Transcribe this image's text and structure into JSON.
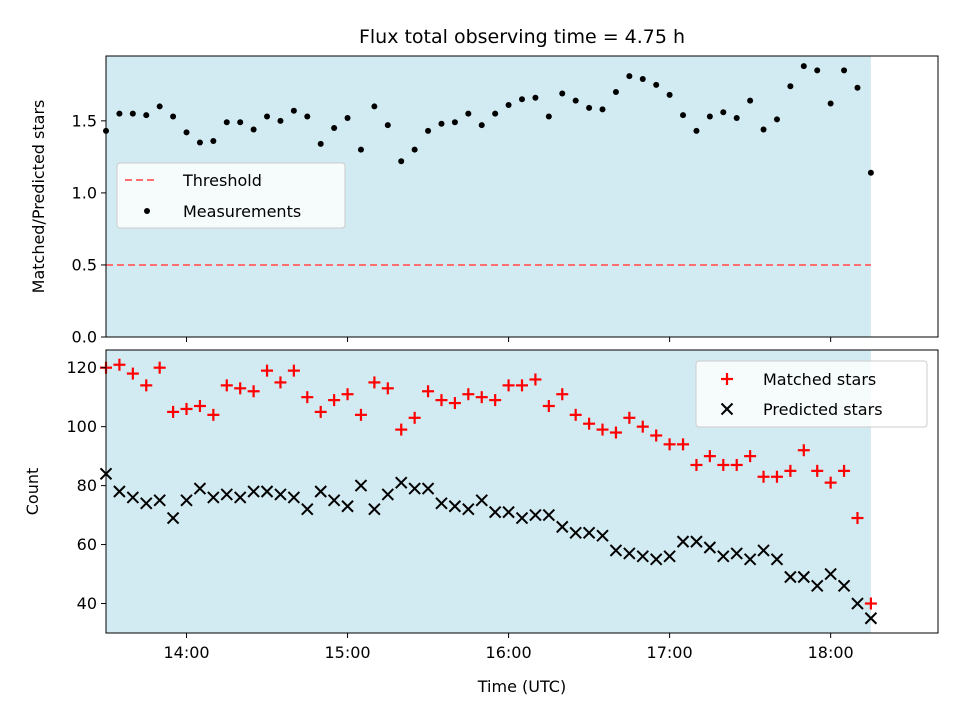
{
  "figure": {
    "title": "Flux total observing time = 4.75 h",
    "xlabel": "Time (UTC)",
    "x_ticks": [
      "14:00",
      "15:00",
      "16:00",
      "17:00",
      "18:00"
    ]
  },
  "colors": {
    "shade": "#add8e6",
    "threshold": "#ff6f6f",
    "measurements": "#000000",
    "matched": "#ff0000",
    "predicted": "#000000"
  },
  "chart_data": [
    {
      "type": "scatter",
      "ylabel": "Matched/Predicted stars",
      "xlim": [
        "13:30",
        "18:40"
      ],
      "ylim": [
        0,
        1.95
      ],
      "y_ticks": [
        "0.0",
        "0.5",
        "1.0",
        "1.5"
      ],
      "observing_window": [
        "13:30",
        "18:15"
      ],
      "legend_position": "center-left",
      "legend": [
        "Threshold",
        "Measurements"
      ],
      "threshold": {
        "name": "Threshold",
        "value": 0.5,
        "style": "dashed"
      },
      "series": [
        {
          "name": "Measurements",
          "marker": "dot",
          "x": [
            "13:30",
            "13:35",
            "13:40",
            "13:45",
            "13:50",
            "13:55",
            "14:00",
            "14:05",
            "14:10",
            "14:15",
            "14:20",
            "14:25",
            "14:30",
            "14:35",
            "14:40",
            "14:45",
            "14:50",
            "14:55",
            "15:00",
            "15:05",
            "15:10",
            "15:15",
            "15:20",
            "15:25",
            "15:30",
            "15:35",
            "15:40",
            "15:45",
            "15:50",
            "15:55",
            "16:00",
            "16:05",
            "16:10",
            "16:15",
            "16:20",
            "16:25",
            "16:30",
            "16:35",
            "16:40",
            "16:45",
            "16:50",
            "16:55",
            "17:00",
            "17:05",
            "17:10",
            "17:15",
            "17:20",
            "17:25",
            "17:30",
            "17:35",
            "17:40",
            "17:45",
            "17:50",
            "17:55",
            "18:00",
            "18:05",
            "18:10",
            "18:15"
          ],
          "values": [
            1.43,
            1.55,
            1.55,
            1.54,
            1.6,
            1.53,
            1.42,
            1.35,
            1.36,
            1.49,
            1.49,
            1.44,
            1.53,
            1.5,
            1.57,
            1.53,
            1.34,
            1.45,
            1.52,
            1.3,
            1.6,
            1.47,
            1.22,
            1.3,
            1.43,
            1.48,
            1.49,
            1.55,
            1.47,
            1.55,
            1.61,
            1.65,
            1.66,
            1.53,
            1.69,
            1.64,
            1.59,
            1.58,
            1.7,
            1.81,
            1.79,
            1.75,
            1.68,
            1.54,
            1.43,
            1.53,
            1.56,
            1.52,
            1.64,
            1.44,
            1.51,
            1.74,
            1.88,
            1.85,
            1.62,
            1.85,
            1.73,
            1.14
          ]
        }
      ]
    },
    {
      "type": "scatter",
      "ylabel": "Count",
      "xlim": [
        "13:30",
        "18:40"
      ],
      "ylim": [
        30,
        126
      ],
      "y_ticks": [
        "40",
        "60",
        "80",
        "100",
        "120"
      ],
      "observing_window": [
        "13:30",
        "18:15"
      ],
      "legend_position": "top-right",
      "x": [
        "13:30",
        "13:35",
        "13:40",
        "13:45",
        "13:50",
        "13:55",
        "14:00",
        "14:05",
        "14:10",
        "14:15",
        "14:20",
        "14:25",
        "14:30",
        "14:35",
        "14:40",
        "14:45",
        "14:50",
        "14:55",
        "15:00",
        "15:05",
        "15:10",
        "15:15",
        "15:20",
        "15:25",
        "15:30",
        "15:35",
        "15:40",
        "15:45",
        "15:50",
        "15:55",
        "16:00",
        "16:05",
        "16:10",
        "16:15",
        "16:20",
        "16:25",
        "16:30",
        "16:35",
        "16:40",
        "16:45",
        "16:50",
        "16:55",
        "17:00",
        "17:05",
        "17:10",
        "17:15",
        "17:20",
        "17:25",
        "17:30",
        "17:35",
        "17:40",
        "17:45",
        "17:50",
        "17:55",
        "18:00",
        "18:05",
        "18:10",
        "18:15"
      ],
      "series": [
        {
          "name": "Matched stars",
          "marker": "plus",
          "values": [
            120,
            121,
            118,
            114,
            120,
            105,
            106,
            107,
            104,
            114,
            113,
            112,
            119,
            115,
            119,
            110,
            105,
            109,
            111,
            104,
            115,
            113,
            99,
            103,
            112,
            109,
            108,
            111,
            110,
            109,
            114,
            114,
            116,
            107,
            111,
            104,
            101,
            99,
            98,
            103,
            100,
            97,
            94,
            94,
            87,
            90,
            87,
            87,
            90,
            83,
            83,
            85,
            92,
            85,
            81,
            85,
            69,
            40
          ]
        },
        {
          "name": "Predicted stars",
          "marker": "x",
          "values": [
            84,
            78,
            76,
            74,
            75,
            69,
            75,
            79,
            76,
            77,
            76,
            78,
            78,
            77,
            76,
            72,
            78,
            75,
            73,
            80,
            72,
            77,
            81,
            79,
            79,
            74,
            73,
            72,
            75,
            71,
            71,
            69,
            70,
            70,
            66,
            64,
            64,
            63,
            58,
            57,
            56,
            55,
            56,
            61,
            61,
            59,
            56,
            57,
            55,
            58,
            55,
            49,
            49,
            46,
            50,
            46,
            40,
            35
          ]
        }
      ]
    }
  ]
}
